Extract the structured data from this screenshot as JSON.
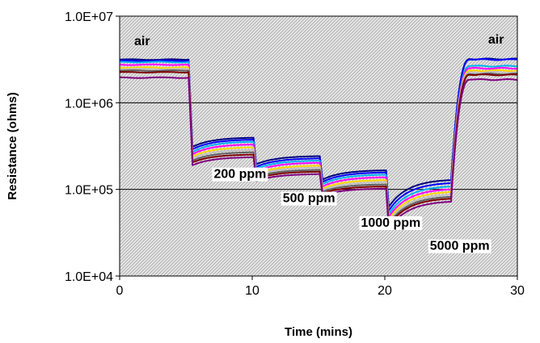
{
  "chart_data": {
    "type": "line",
    "title": "",
    "xlabel": "Time (mins)",
    "ylabel": "Resistance (ohms)",
    "xlim": [
      0,
      30
    ],
    "ylim": [
      10000,
      10000000
    ],
    "yscale": "log",
    "x_ticks": [
      0,
      10,
      20,
      30
    ],
    "x_tick_labels": [
      "0",
      "10",
      "20",
      "30"
    ],
    "y_ticks": [
      10000,
      100000,
      1000000,
      10000000
    ],
    "y_tick_labels": [
      "1.0E+04",
      "1.0E+05",
      "1.0E+06",
      "1.0E+07"
    ],
    "grid": "horizontal",
    "legend": "none",
    "annotations": [
      {
        "text": "air",
        "x": 1.1,
        "y": 4600000,
        "boxed": false
      },
      {
        "text": "air",
        "x": 27.8,
        "y": 4800000,
        "boxed": false
      },
      {
        "text": "200 ppm",
        "x": 7.1,
        "y": 135000,
        "boxed": true
      },
      {
        "text": "500 ppm",
        "x": 12.3,
        "y": 71000,
        "boxed": true
      },
      {
        "text": "1000 ppm",
        "x": 18.2,
        "y": 37000,
        "boxed": true
      },
      {
        "text": "5000 ppm",
        "x": 23.4,
        "y": 20000,
        "boxed": true
      }
    ],
    "series": [
      {
        "color": "#000080",
        "air": 3150000,
        "s200": [
          310000,
          395000
        ],
        "s500": [
          195000,
          242000
        ],
        "s1000": [
          130000,
          166000
        ],
        "s5000": [
          63000,
          128000
        ],
        "recover": 3200000
      },
      {
        "color": "#0000ff",
        "air": 3050000,
        "s200": [
          290000,
          375000
        ],
        "s500": [
          182000,
          228000
        ],
        "s1000": [
          122000,
          157000
        ],
        "s5000": [
          57000,
          118000
        ],
        "recover": 3150000
      },
      {
        "color": "#00b0f0",
        "air": 2950000,
        "s200": [
          270000,
          355000
        ],
        "s500": [
          172000,
          215000
        ],
        "s1000": [
          115000,
          148000
        ],
        "s5000": [
          52000,
          108000
        ],
        "recover": 2650000
      },
      {
        "color": "#ff00ff",
        "air": 2750000,
        "s200": [
          255000,
          330000
        ],
        "s500": [
          162000,
          203000
        ],
        "s1000": [
          108000,
          138000
        ],
        "s5000": [
          48000,
          100000
        ],
        "recover": 2500000
      },
      {
        "color": "#ffd700",
        "air": 2550000,
        "s200": [
          240000,
          305000
        ],
        "s500": [
          150000,
          188000
        ],
        "s1000": [
          102000,
          128000
        ],
        "s5000": [
          45000,
          93000
        ],
        "recover": 2350000
      },
      {
        "color": "#c0c0c0",
        "air": 2450000,
        "s200": [
          228000,
          285000
        ],
        "s500": [
          145000,
          178000
        ],
        "s1000": [
          98000,
          121000
        ],
        "s5000": [
          42000,
          87000
        ],
        "recover": 2250000
      },
      {
        "color": "#606060",
        "air": 2350000,
        "s200": [
          215000,
          268000
        ],
        "s500": [
          138000,
          168000
        ],
        "s1000": [
          94000,
          114000
        ],
        "s5000": [
          40000,
          82000
        ],
        "recover": 2150000
      },
      {
        "color": "#800000",
        "air": 2250000,
        "s200": [
          205000,
          252000
        ],
        "s500": [
          132000,
          160000
        ],
        "s1000": [
          90000,
          108000
        ],
        "s5000": [
          38000,
          78000
        ],
        "recover": 2100000
      },
      {
        "color": "#800080",
        "air": 1950000,
        "s200": [
          190000,
          235000
        ],
        "s500": [
          125000,
          150000
        ],
        "s1000": [
          85000,
          102000
        ],
        "s5000": [
          35000,
          72000
        ],
        "recover": 1850000
      }
    ]
  }
}
